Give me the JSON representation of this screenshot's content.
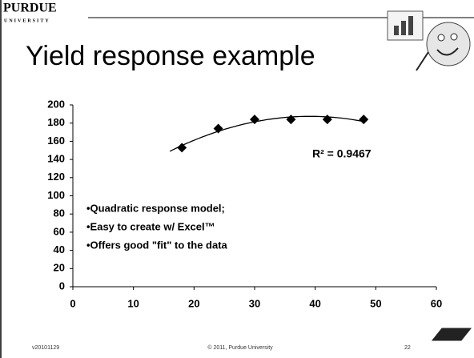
{
  "header": {
    "logo": "PURDUE",
    "logo_sub": "UNIVERSITY",
    "title": "Yield response example"
  },
  "chart_data": {
    "type": "scatter",
    "x": [
      18,
      24,
      30,
      36,
      42,
      48
    ],
    "values": [
      153,
      174,
      184,
      184,
      184,
      184
    ],
    "color": "#000000",
    "marker": "diamond",
    "trendline": "quadratic",
    "xlim": [
      0,
      60
    ],
    "xticks": [
      0,
      10,
      20,
      30,
      40,
      50,
      60
    ],
    "ylim": [
      0,
      200
    ],
    "yticks": [
      0,
      20,
      40,
      60,
      80,
      100,
      120,
      140,
      160,
      180,
      200
    ],
    "grid": false,
    "annotations": [
      "R² = 0.9467",
      "•Quadratic response model;",
      "•Easy to create w/ Excel™",
      "•Offers good \"fit\" to the data"
    ]
  },
  "footer": {
    "version": "v20101129",
    "copyright": "© 2011, Purdue University",
    "page": "22"
  }
}
